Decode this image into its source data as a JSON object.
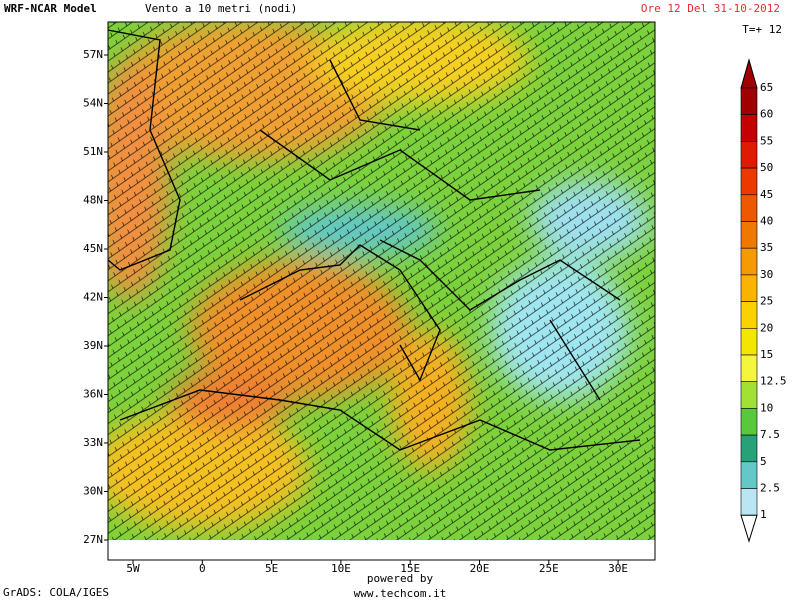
{
  "header": {
    "model": "WRF-NCAR Model",
    "title": "Vento a 10 metri (nodi)",
    "time": "Ore 12 Del 31-10-2012",
    "step": "T=+ 12"
  },
  "map": {
    "lat_labels": [
      "57N",
      "54N",
      "51N",
      "48N",
      "45N",
      "42N",
      "39N",
      "36N",
      "33N",
      "30N",
      "27N"
    ],
    "lon_labels": [
      "5W",
      "0",
      "5E",
      "10E",
      "15E",
      "20E",
      "25E",
      "30E"
    ]
  },
  "legend": {
    "levels": [
      65,
      60,
      55,
      50,
      45,
      40,
      35,
      30,
      25,
      20,
      15,
      12.5,
      10,
      7.5,
      5,
      2.5,
      1
    ],
    "colors": [
      "#a00000",
      "#c40000",
      "#e01a00",
      "#ee3800",
      "#f05800",
      "#f07800",
      "#f59a00",
      "#fab400",
      "#fad200",
      "#f5e600",
      "#f5f53c",
      "#a0e132",
      "#5ac83c",
      "#28a078",
      "#64c8c8",
      "#b9e6f2"
    ],
    "top_color": "#a00000",
    "bottom_color": "#ffffff"
  },
  "footer": {
    "powered": "powered by",
    "url": "www.techcom.it",
    "grads": "GrADS: COLA/IGES"
  }
}
